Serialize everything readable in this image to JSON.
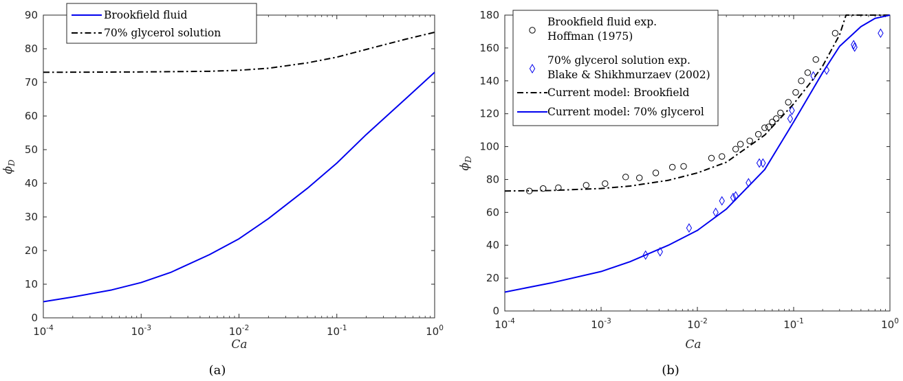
{
  "chart_data": [
    {
      "type": "line",
      "caption": "(a)",
      "xlabel": "Ca",
      "ylabel": "ϕD",
      "xscale": "log",
      "xlim": [
        0.0001,
        1
      ],
      "ylim": [
        0,
        90
      ],
      "yticks": [
        0,
        10,
        20,
        30,
        40,
        50,
        60,
        70,
        80,
        90
      ],
      "xtick_base": "10",
      "xtick_exponents": [
        "-4",
        "-3",
        "-2",
        "-1",
        "0"
      ],
      "legend_position": "top-left",
      "series": [
        {
          "name": "Brookfield fluid",
          "color": "#0000ee",
          "style": "solid",
          "x": [
            0.0001,
            0.0002,
            0.0005,
            0.001,
            0.002,
            0.005,
            0.01,
            0.02,
            0.05,
            0.1,
            0.2,
            0.5,
            1
          ],
          "y": [
            4.8,
            6.2,
            8.3,
            10.5,
            13.5,
            18.8,
            23.5,
            29.5,
            38.5,
            46,
            54.5,
            65,
            73
          ]
        },
        {
          "name": "70% glycerol solution",
          "color": "#000000",
          "style": "dashdot",
          "x": [
            0.0001,
            0.001,
            0.005,
            0.01,
            0.02,
            0.05,
            0.1,
            0.2,
            0.5,
            1
          ],
          "y": [
            73,
            73.1,
            73.3,
            73.6,
            74.2,
            75.8,
            77.5,
            79.8,
            82.8,
            84.9
          ]
        }
      ]
    },
    {
      "type": "line",
      "caption": "(b)",
      "xlabel": "Ca",
      "ylabel": "ϕD",
      "xscale": "log",
      "xlim": [
        0.0001,
        1
      ],
      "ylim": [
        0,
        180
      ],
      "yticks": [
        0,
        20,
        40,
        60,
        80,
        100,
        120,
        140,
        160,
        180
      ],
      "xtick_base": "10",
      "xtick_exponents": [
        "-4",
        "-3",
        "-2",
        "-1",
        "0"
      ],
      "legend_position": "top-left",
      "series": [
        {
          "name": "Brookfield fluid exp.",
          "name_line2": "Hoffman (1975)",
          "color": "#000000",
          "marker": "circle",
          "x": [
            0.00018,
            0.00025,
            0.00036,
            0.0007,
            0.0011,
            0.0018,
            0.0025,
            0.0037,
            0.0055,
            0.0072,
            0.014,
            0.018,
            0.025,
            0.028,
            0.035,
            0.043,
            0.05,
            0.055,
            0.06,
            0.066,
            0.073,
            0.088,
            0.105,
            0.12,
            0.14,
            0.17,
            0.27
          ],
          "y": [
            73,
            74.5,
            75,
            76.5,
            77.5,
            81.5,
            81,
            84,
            87.5,
            88,
            93,
            94,
            98.5,
            101.5,
            103.5,
            107.5,
            111.5,
            112,
            115,
            117,
            120.5,
            127,
            133,
            140,
            145,
            153,
            169
          ]
        },
        {
          "name": "70% glycerol solution exp.",
          "name_line2": "Blake & Shikhmurzaev (2002)",
          "color": "#0000ee",
          "marker": "diamond",
          "x": [
            0.0029,
            0.0041,
            0.0082,
            0.0155,
            0.018,
            0.0235,
            0.025,
            0.034,
            0.044,
            0.048,
            0.092,
            0.096,
            0.16,
            0.22,
            0.42,
            0.43,
            0.8
          ],
          "y": [
            34,
            36,
            50.5,
            60,
            67,
            69,
            70,
            78,
            90,
            90,
            117,
            122,
            143,
            146.5,
            162,
            160.5,
            169
          ]
        },
        {
          "name": "Current model: Brookfield",
          "color": "#000000",
          "style": "dashdot",
          "x": [
            0.0001,
            0.0003,
            0.001,
            0.002,
            0.005,
            0.01,
            0.02,
            0.05,
            0.1,
            0.15,
            0.2,
            0.3,
            0.35,
            0.5,
            1
          ],
          "y": [
            73,
            73.3,
            74.5,
            76,
            79.5,
            84,
            90.5,
            107,
            126,
            139,
            149,
            168,
            180,
            180,
            180
          ]
        },
        {
          "name": "Current model: 70% glycerol",
          "color": "#0000ee",
          "style": "solid",
          "x": [
            0.0001,
            0.0003,
            0.001,
            0.002,
            0.005,
            0.01,
            0.02,
            0.05,
            0.1,
            0.2,
            0.3,
            0.5,
            0.7,
            1
          ],
          "y": [
            11.5,
            17,
            24,
            30,
            40,
            49,
            62,
            86,
            115,
            145,
            161,
            173,
            178,
            180
          ]
        }
      ]
    }
  ]
}
